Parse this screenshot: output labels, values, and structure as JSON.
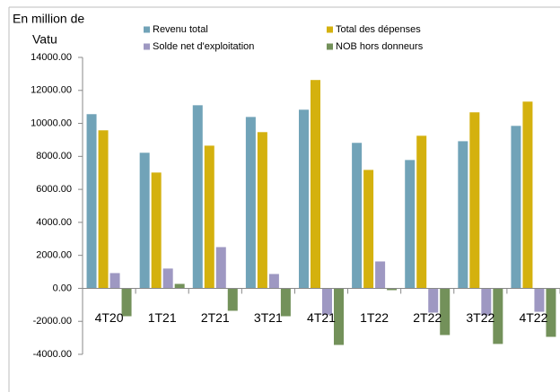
{
  "chart_data": {
    "type": "bar",
    "y_label": [
      "En million de",
      "Vatu"
    ],
    "categories": [
      "4T20",
      "1T21",
      "2T21",
      "3T21",
      "4T21",
      "1T22",
      "2T22",
      "3T22",
      "4T22"
    ],
    "series": [
      {
        "name": "Revenu total",
        "color": "#71a3b8",
        "values": [
          10560,
          8220,
          11100,
          10390,
          10830,
          8820,
          7780,
          8920,
          9850
        ]
      },
      {
        "name": "Total des dépenses",
        "color": "#d4b10e",
        "values": [
          9580,
          7020,
          8650,
          9470,
          12630,
          7180,
          9250,
          10670,
          11320
        ]
      },
      {
        "name": "Solde net d'exploitation",
        "color": "#9e98c2",
        "values": [
          925,
          1200,
          2500,
          870,
          -1600,
          1630,
          -1470,
          -1630,
          -1420
        ]
      },
      {
        "name": "NOB hors donneurs",
        "color": "#73915a",
        "values": [
          -1690,
          270,
          -1360,
          -1690,
          -3430,
          -110,
          -2830,
          -3370,
          -2940
        ]
      }
    ],
    "ylim": [
      -4000,
      14000
    ],
    "yticks": [
      {
        "value": -4000,
        "label": "-4000.00"
      },
      {
        "value": -2000,
        "label": "-2000.00"
      },
      {
        "value": 0,
        "label": "0.00"
      },
      {
        "value": 2000,
        "label": "2000.00"
      },
      {
        "value": 4000,
        "label": "4000.00"
      },
      {
        "value": 6000,
        "label": "6000.00"
      },
      {
        "value": 8000,
        "label": "8000.00"
      },
      {
        "value": 10000,
        "label": "10000.00"
      },
      {
        "value": 12000,
        "label": "12000.00"
      },
      {
        "value": 14000,
        "label": "14000.00"
      }
    ],
    "grid": false
  }
}
